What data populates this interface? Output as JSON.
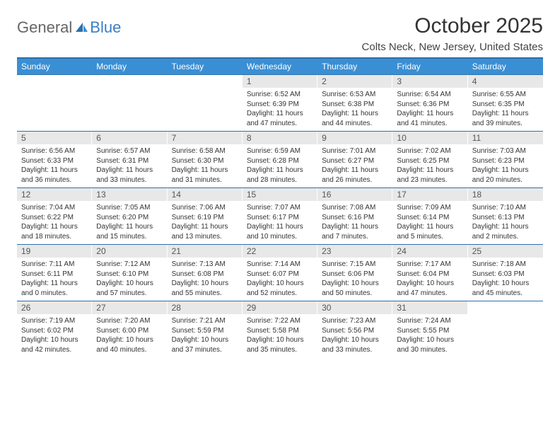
{
  "logo": {
    "text_general": "General",
    "text_blue": "Blue"
  },
  "header": {
    "month_title": "October 2025",
    "location": "Colts Neck, New Jersey, United States"
  },
  "colors": {
    "header_bar": "#3a8fd4",
    "border": "#2e6fab",
    "daynum_bg": "#e8e8e8",
    "text": "#333333",
    "logo_blue": "#3a7fc4"
  },
  "day_labels": [
    "Sunday",
    "Monday",
    "Tuesday",
    "Wednesday",
    "Thursday",
    "Friday",
    "Saturday"
  ],
  "weeks": [
    [
      {
        "empty": true
      },
      {
        "empty": true
      },
      {
        "empty": true
      },
      {
        "num": "1",
        "sunrise": "Sunrise: 6:52 AM",
        "sunset": "Sunset: 6:39 PM",
        "daylight": "Daylight: 11 hours and 47 minutes."
      },
      {
        "num": "2",
        "sunrise": "Sunrise: 6:53 AM",
        "sunset": "Sunset: 6:38 PM",
        "daylight": "Daylight: 11 hours and 44 minutes."
      },
      {
        "num": "3",
        "sunrise": "Sunrise: 6:54 AM",
        "sunset": "Sunset: 6:36 PM",
        "daylight": "Daylight: 11 hours and 41 minutes."
      },
      {
        "num": "4",
        "sunrise": "Sunrise: 6:55 AM",
        "sunset": "Sunset: 6:35 PM",
        "daylight": "Daylight: 11 hours and 39 minutes."
      }
    ],
    [
      {
        "num": "5",
        "sunrise": "Sunrise: 6:56 AM",
        "sunset": "Sunset: 6:33 PM",
        "daylight": "Daylight: 11 hours and 36 minutes."
      },
      {
        "num": "6",
        "sunrise": "Sunrise: 6:57 AM",
        "sunset": "Sunset: 6:31 PM",
        "daylight": "Daylight: 11 hours and 33 minutes."
      },
      {
        "num": "7",
        "sunrise": "Sunrise: 6:58 AM",
        "sunset": "Sunset: 6:30 PM",
        "daylight": "Daylight: 11 hours and 31 minutes."
      },
      {
        "num": "8",
        "sunrise": "Sunrise: 6:59 AM",
        "sunset": "Sunset: 6:28 PM",
        "daylight": "Daylight: 11 hours and 28 minutes."
      },
      {
        "num": "9",
        "sunrise": "Sunrise: 7:01 AM",
        "sunset": "Sunset: 6:27 PM",
        "daylight": "Daylight: 11 hours and 26 minutes."
      },
      {
        "num": "10",
        "sunrise": "Sunrise: 7:02 AM",
        "sunset": "Sunset: 6:25 PM",
        "daylight": "Daylight: 11 hours and 23 minutes."
      },
      {
        "num": "11",
        "sunrise": "Sunrise: 7:03 AM",
        "sunset": "Sunset: 6:23 PM",
        "daylight": "Daylight: 11 hours and 20 minutes."
      }
    ],
    [
      {
        "num": "12",
        "sunrise": "Sunrise: 7:04 AM",
        "sunset": "Sunset: 6:22 PM",
        "daylight": "Daylight: 11 hours and 18 minutes."
      },
      {
        "num": "13",
        "sunrise": "Sunrise: 7:05 AM",
        "sunset": "Sunset: 6:20 PM",
        "daylight": "Daylight: 11 hours and 15 minutes."
      },
      {
        "num": "14",
        "sunrise": "Sunrise: 7:06 AM",
        "sunset": "Sunset: 6:19 PM",
        "daylight": "Daylight: 11 hours and 13 minutes."
      },
      {
        "num": "15",
        "sunrise": "Sunrise: 7:07 AM",
        "sunset": "Sunset: 6:17 PM",
        "daylight": "Daylight: 11 hours and 10 minutes."
      },
      {
        "num": "16",
        "sunrise": "Sunrise: 7:08 AM",
        "sunset": "Sunset: 6:16 PM",
        "daylight": "Daylight: 11 hours and 7 minutes."
      },
      {
        "num": "17",
        "sunrise": "Sunrise: 7:09 AM",
        "sunset": "Sunset: 6:14 PM",
        "daylight": "Daylight: 11 hours and 5 minutes."
      },
      {
        "num": "18",
        "sunrise": "Sunrise: 7:10 AM",
        "sunset": "Sunset: 6:13 PM",
        "daylight": "Daylight: 11 hours and 2 minutes."
      }
    ],
    [
      {
        "num": "19",
        "sunrise": "Sunrise: 7:11 AM",
        "sunset": "Sunset: 6:11 PM",
        "daylight": "Daylight: 11 hours and 0 minutes."
      },
      {
        "num": "20",
        "sunrise": "Sunrise: 7:12 AM",
        "sunset": "Sunset: 6:10 PM",
        "daylight": "Daylight: 10 hours and 57 minutes."
      },
      {
        "num": "21",
        "sunrise": "Sunrise: 7:13 AM",
        "sunset": "Sunset: 6:08 PM",
        "daylight": "Daylight: 10 hours and 55 minutes."
      },
      {
        "num": "22",
        "sunrise": "Sunrise: 7:14 AM",
        "sunset": "Sunset: 6:07 PM",
        "daylight": "Daylight: 10 hours and 52 minutes."
      },
      {
        "num": "23",
        "sunrise": "Sunrise: 7:15 AM",
        "sunset": "Sunset: 6:06 PM",
        "daylight": "Daylight: 10 hours and 50 minutes."
      },
      {
        "num": "24",
        "sunrise": "Sunrise: 7:17 AM",
        "sunset": "Sunset: 6:04 PM",
        "daylight": "Daylight: 10 hours and 47 minutes."
      },
      {
        "num": "25",
        "sunrise": "Sunrise: 7:18 AM",
        "sunset": "Sunset: 6:03 PM",
        "daylight": "Daylight: 10 hours and 45 minutes."
      }
    ],
    [
      {
        "num": "26",
        "sunrise": "Sunrise: 7:19 AM",
        "sunset": "Sunset: 6:02 PM",
        "daylight": "Daylight: 10 hours and 42 minutes."
      },
      {
        "num": "27",
        "sunrise": "Sunrise: 7:20 AM",
        "sunset": "Sunset: 6:00 PM",
        "daylight": "Daylight: 10 hours and 40 minutes."
      },
      {
        "num": "28",
        "sunrise": "Sunrise: 7:21 AM",
        "sunset": "Sunset: 5:59 PM",
        "daylight": "Daylight: 10 hours and 37 minutes."
      },
      {
        "num": "29",
        "sunrise": "Sunrise: 7:22 AM",
        "sunset": "Sunset: 5:58 PM",
        "daylight": "Daylight: 10 hours and 35 minutes."
      },
      {
        "num": "30",
        "sunrise": "Sunrise: 7:23 AM",
        "sunset": "Sunset: 5:56 PM",
        "daylight": "Daylight: 10 hours and 33 minutes."
      },
      {
        "num": "31",
        "sunrise": "Sunrise: 7:24 AM",
        "sunset": "Sunset: 5:55 PM",
        "daylight": "Daylight: 10 hours and 30 minutes."
      },
      {
        "empty": true
      }
    ]
  ]
}
